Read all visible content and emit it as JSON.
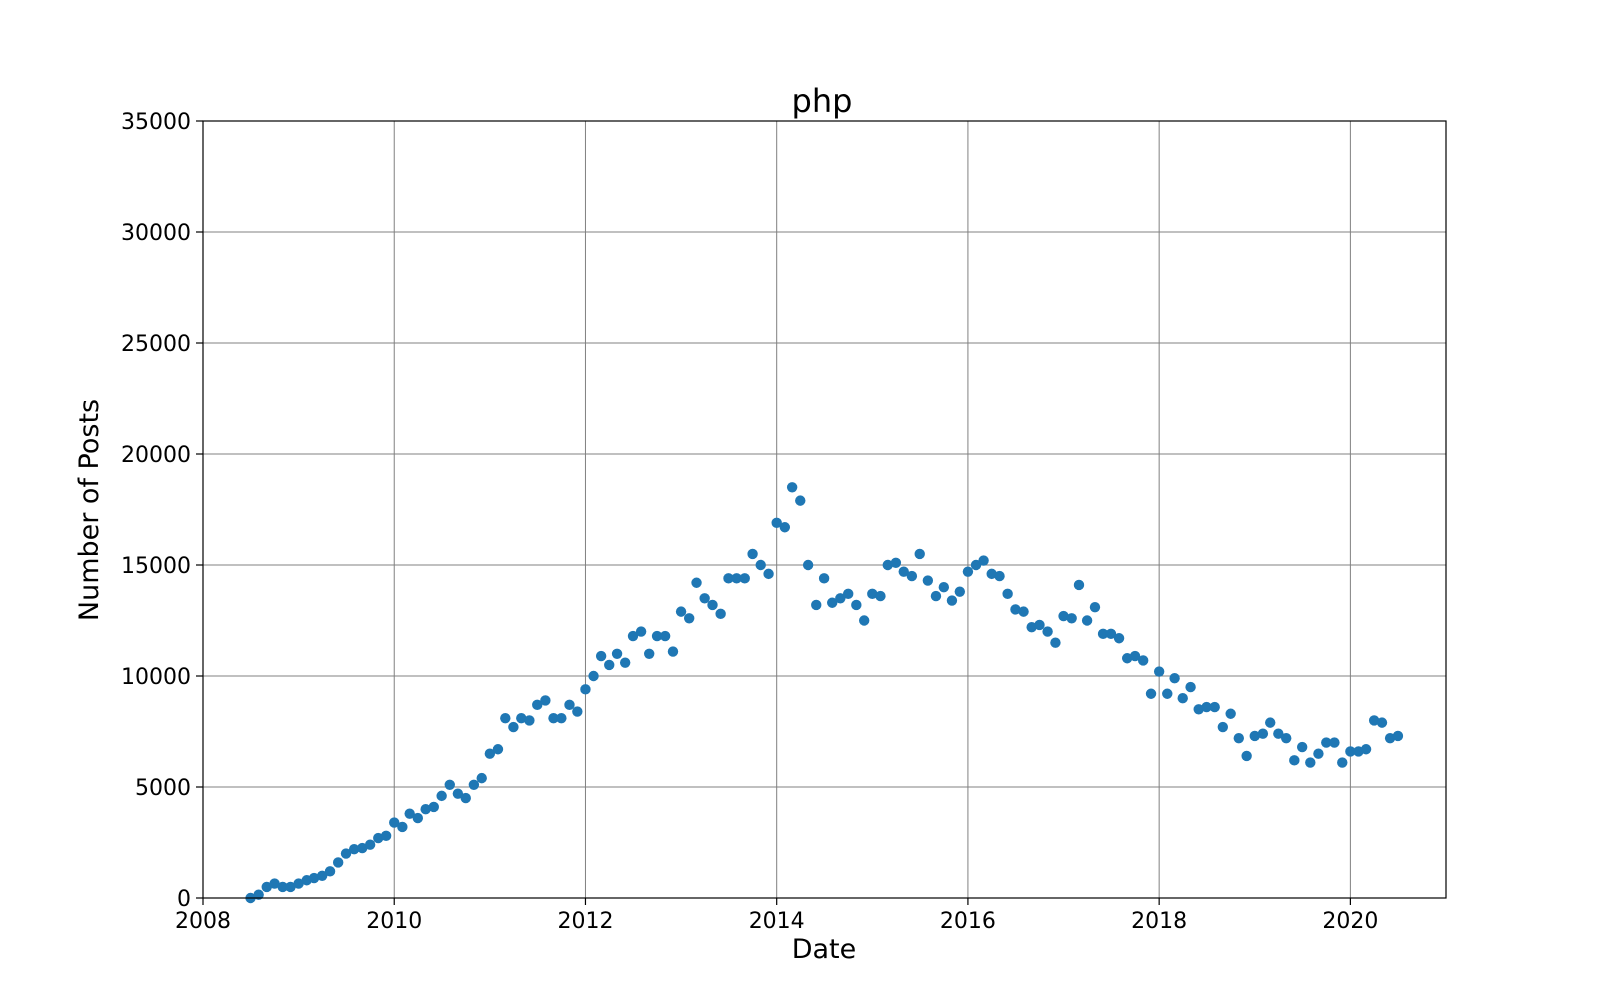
{
  "chart_data": {
    "type": "scatter",
    "title": "php",
    "xlabel": "Date",
    "ylabel": "Number of Posts",
    "xlim": [
      "2008-01-01",
      "2021-01-01"
    ],
    "ylim": [
      0,
      35000
    ],
    "x_ticks": [
      "2008",
      "2010",
      "2012",
      "2014",
      "2016",
      "2018",
      "2020"
    ],
    "y_ticks": [
      "0",
      "5000",
      "10000",
      "15000",
      "20000",
      "25000",
      "30000",
      "35000"
    ],
    "grid": true,
    "color": "#1f77b4",
    "series": [
      {
        "x": [
          "2008-07",
          "2008-08",
          "2008-09",
          "2008-10",
          "2008-11",
          "2008-12",
          "2009-01",
          "2009-02",
          "2009-03",
          "2009-04",
          "2009-05",
          "2009-06",
          "2009-07",
          "2009-08",
          "2009-09",
          "2009-10",
          "2009-11",
          "2009-12",
          "2010-01",
          "2010-02",
          "2010-03",
          "2010-04",
          "2010-05",
          "2010-06",
          "2010-07",
          "2010-08",
          "2010-09",
          "2010-10",
          "2010-11",
          "2010-12",
          "2011-01",
          "2011-02",
          "2011-03",
          "2011-04",
          "2011-05",
          "2011-06",
          "2011-07",
          "2011-08",
          "2011-09",
          "2011-10",
          "2011-11",
          "2011-12",
          "2012-01",
          "2012-02",
          "2012-03",
          "2012-04",
          "2012-05",
          "2012-06",
          "2012-07",
          "2012-08",
          "2012-09",
          "2012-10",
          "2012-11",
          "2012-12",
          "2013-01",
          "2013-02",
          "2013-03",
          "2013-04",
          "2013-05",
          "2013-06",
          "2013-07",
          "2013-08",
          "2013-09",
          "2013-10",
          "2013-11",
          "2013-12",
          "2014-01",
          "2014-02",
          "2014-03",
          "2014-04",
          "2014-05",
          "2014-06",
          "2014-07",
          "2014-08",
          "2014-09",
          "2014-10",
          "2014-11",
          "2014-12",
          "2015-01",
          "2015-02",
          "2015-03",
          "2015-04",
          "2015-05",
          "2015-06",
          "2015-07",
          "2015-08",
          "2015-09",
          "2015-10",
          "2015-11",
          "2015-12",
          "2016-01",
          "2016-02",
          "2016-03",
          "2016-04",
          "2016-05",
          "2016-06",
          "2016-07",
          "2016-08",
          "2016-09",
          "2016-10",
          "2016-11",
          "2016-12",
          "2017-01",
          "2017-02",
          "2017-03",
          "2017-04",
          "2017-05",
          "2017-06",
          "2017-07",
          "2017-08",
          "2017-09",
          "2017-10",
          "2017-11",
          "2017-12",
          "2018-01",
          "2018-02",
          "2018-03",
          "2018-04",
          "2018-05",
          "2018-06",
          "2018-07",
          "2018-08",
          "2018-09",
          "2018-10",
          "2018-11",
          "2018-12",
          "2019-01",
          "2019-02",
          "2019-03",
          "2019-04",
          "2019-05",
          "2019-06",
          "2019-07",
          "2019-08",
          "2019-09",
          "2019-10",
          "2019-11",
          "2019-12",
          "2020-01",
          "2020-02",
          "2020-03",
          "2020-04",
          "2020-05",
          "2020-06",
          "2020-07"
        ],
        "y": [
          0,
          150,
          500,
          650,
          500,
          500,
          650,
          800,
          900,
          1000,
          1200,
          1600,
          2000,
          2200,
          2250,
          2400,
          2700,
          2800,
          3400,
          3200,
          3800,
          3600,
          4000,
          4100,
          4600,
          5100,
          4700,
          4500,
          5100,
          5400,
          6500,
          6700,
          8100,
          7700,
          8100,
          8000,
          8700,
          8900,
          8100,
          8100,
          8700,
          8400,
          9400,
          10000,
          10900,
          10500,
          11000,
          10600,
          11800,
          12000,
          11000,
          11800,
          11800,
          11100,
          12900,
          12600,
          14200,
          13500,
          13200,
          12800,
          14400,
          14400,
          14400,
          15500,
          15000,
          14600,
          16900,
          16700,
          18500,
          17900,
          15000,
          13200,
          14400,
          13300,
          13500,
          13700,
          13200,
          12500,
          13700,
          13600,
          15000,
          15100,
          14700,
          14500,
          15500,
          14300,
          13600,
          14000,
          13400,
          13800,
          14700,
          15000,
          15200,
          14600,
          14500,
          13700,
          13000,
          12900,
          12200,
          12300,
          12000,
          11500,
          12700,
          12600,
          14100,
          12500,
          13100,
          11900,
          11900,
          11700,
          10800,
          10900,
          10700,
          9200,
          10200,
          9200,
          9900,
          9000,
          9500,
          8500,
          8600,
          8600,
          7700,
          8300,
          7200,
          6400,
          7300,
          7400,
          7900,
          7400,
          7200,
          6200,
          6800,
          6100,
          6500,
          7000,
          7000,
          6100,
          6600,
          6600,
          6700,
          8000,
          7900,
          7200,
          7300
        ]
      }
    ]
  }
}
